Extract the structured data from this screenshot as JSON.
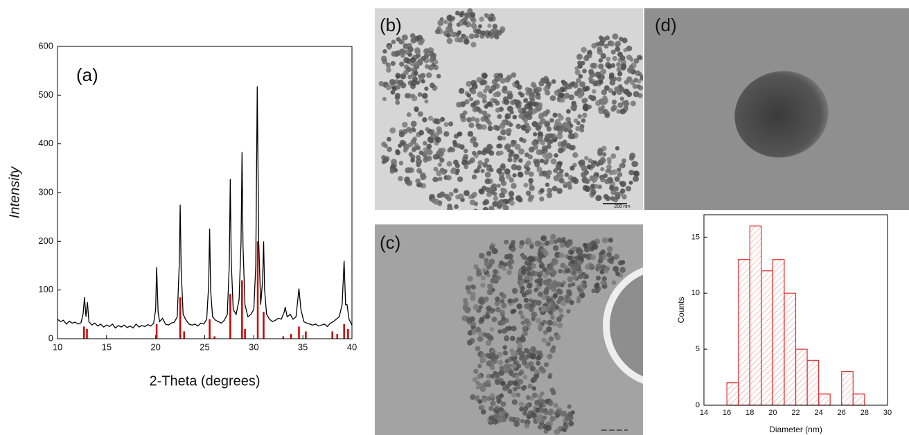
{
  "chart_data": [
    {
      "type": "line",
      "annotation": "(a)",
      "xlabel": "2-Theta (degrees)",
      "ylabel": "Intensity",
      "xlim": [
        10,
        40
      ],
      "xticks": [
        10,
        15,
        20,
        25,
        30,
        35,
        40
      ],
      "ylim": [
        0,
        600
      ],
      "yticks": [
        0,
        100,
        200,
        300,
        400,
        500,
        600
      ],
      "x": [
        10,
        10.3,
        10.6,
        10.9,
        11.2,
        11.5,
        11.8,
        12.1,
        12.4,
        12.6,
        12.75,
        12.9,
        13.05,
        13.2,
        13.5,
        13.8,
        14.1,
        14.4,
        14.7,
        15,
        15.3,
        15.6,
        15.9,
        16.2,
        16.5,
        16.8,
        17.1,
        17.4,
        17.7,
        18,
        18.3,
        18.6,
        18.9,
        19.2,
        19.5,
        19.8,
        20.0,
        20.1,
        20.25,
        20.4,
        20.7,
        21,
        21.3,
        21.6,
        21.9,
        22.2,
        22.4,
        22.5,
        22.6,
        22.8,
        23.1,
        23.4,
        23.7,
        24,
        24.3,
        24.6,
        24.9,
        25.2,
        25.4,
        25.5,
        25.6,
        25.8,
        26.1,
        26.4,
        26.7,
        27,
        27.3,
        27.5,
        27.6,
        27.7,
        27.9,
        28.2,
        28.5,
        28.7,
        28.8,
        28.9,
        29.1,
        29.4,
        29.7,
        30,
        30.2,
        30.35,
        30.5,
        30.7,
        30.9,
        31,
        31.1,
        31.3,
        31.6,
        31.9,
        32.2,
        32.5,
        32.8,
        33.1,
        33.2,
        33.4,
        33.7,
        34,
        34.3,
        34.6,
        34.8,
        35.1,
        35.4,
        35.7,
        36,
        36.3,
        36.6,
        36.9,
        37.2,
        37.5,
        37.8,
        38.1,
        38.4,
        38.7,
        39,
        39.2,
        39.35,
        39.5,
        39.7,
        40
      ],
      "series": [
        {
          "color": "#000000",
          "values": [
            40,
            35,
            38,
            30,
            36,
            32,
            34,
            30,
            33,
            50,
            85,
            45,
            75,
            35,
            28,
            32,
            26,
            30,
            24,
            28,
            25,
            30,
            22,
            27,
            24,
            28,
            23,
            26,
            22,
            30,
            24,
            27,
            25,
            29,
            26,
            32,
            60,
            147,
            55,
            35,
            42,
            30,
            28,
            32,
            34,
            45,
            150,
            275,
            140,
            50,
            38,
            30,
            28,
            30,
            26,
            32,
            30,
            40,
            110,
            226,
            100,
            45,
            38,
            35,
            32,
            38,
            50,
            150,
            328,
            160,
            60,
            50,
            80,
            200,
            383,
            190,
            70,
            45,
            50,
            60,
            150,
            518,
            200,
            70,
            120,
            200,
            100,
            50,
            40,
            35,
            38,
            42,
            40,
            55,
            65,
            45,
            50,
            40,
            45,
            103,
            60,
            35,
            32,
            30,
            28,
            30,
            26,
            28,
            30,
            25,
            32,
            35,
            40,
            45,
            70,
            160,
            70,
            70,
            40,
            28
          ]
        }
      ],
      "reference": {
        "type": "stick",
        "color": "#cc0000",
        "x": [
          12.7,
          13,
          20.1,
          22.5,
          22.9,
          25.5,
          26,
          27.6,
          28.8,
          29.1,
          30.4,
          31,
          33,
          33.8,
          34.6,
          35.3,
          38,
          38.5,
          39.2,
          39.6
        ],
        "values": [
          25,
          20,
          30,
          85,
          15,
          40,
          5,
          92,
          120,
          20,
          200,
          55,
          5,
          10,
          25,
          15,
          15,
          10,
          30,
          20
        ]
      }
    },
    {
      "type": "histogram",
      "xlabel": "Diameter (nm)",
      "ylabel": "Counts",
      "color": "#e03030",
      "bins": [
        16,
        17,
        18,
        19,
        20,
        21,
        22,
        23,
        24,
        25,
        26,
        27,
        28
      ],
      "values": [
        2,
        13,
        16,
        12,
        13,
        10,
        5,
        4,
        1,
        0,
        3,
        1
      ],
      "xlim": [
        14,
        30
      ],
      "xticks": [
        14,
        16,
        18,
        20,
        22,
        24,
        26,
        28,
        30
      ],
      "ylim": [
        0,
        17
      ],
      "yticks": [
        0,
        5,
        10,
        15
      ]
    }
  ],
  "images": {
    "b": {
      "label": "(b)",
      "scale_bar": "200 nm"
    },
    "c": {
      "label": "(c)"
    },
    "d": {
      "label": "(d)"
    }
  }
}
